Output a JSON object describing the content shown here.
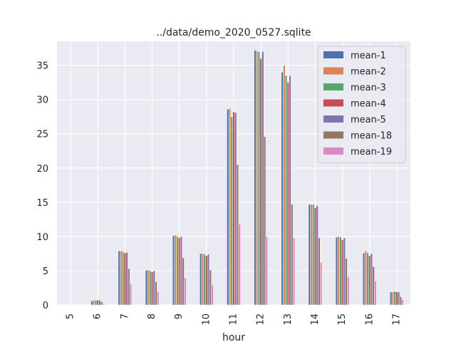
{
  "chart_data": {
    "type": "bar",
    "title": "../data/demo_2020_0527.sqlite",
    "xlabel": "hour",
    "ylabel": "",
    "ylim": [
      0,
      38.5
    ],
    "yticks": [
      0,
      5,
      10,
      15,
      20,
      25,
      30,
      35
    ],
    "grid": true,
    "legend_position": "top-right",
    "categories": [
      "5",
      "6",
      "7",
      "8",
      "9",
      "10",
      "11",
      "12",
      "13",
      "14",
      "15",
      "16",
      "17"
    ],
    "series": [
      {
        "name": "mean-1",
        "color": "#4c72b0",
        "values": [
          0,
          0.6,
          7.9,
          5.1,
          10.1,
          7.5,
          28.6,
          37.2,
          34.0,
          14.7,
          9.9,
          7.6,
          1.9
        ]
      },
      {
        "name": "mean-2",
        "color": "#dd8452",
        "values": [
          0,
          0.7,
          7.9,
          5.1,
          10.2,
          7.5,
          28.7,
          37.1,
          35.0,
          14.7,
          10.0,
          7.9,
          1.9
        ]
      },
      {
        "name": "mean-3",
        "color": "#55a868",
        "values": [
          0,
          0.7,
          7.8,
          5.0,
          10.0,
          7.4,
          27.5,
          37.0,
          33.5,
          14.7,
          9.9,
          7.6,
          2.0
        ]
      },
      {
        "name": "mean-4",
        "color": "#c44e52",
        "values": [
          0,
          0.7,
          7.6,
          4.8,
          9.8,
          7.2,
          28.2,
          36.0,
          32.5,
          14.2,
          9.5,
          7.2,
          1.9
        ]
      },
      {
        "name": "mean-5",
        "color": "#8172b3",
        "values": [
          0,
          0.7,
          7.7,
          5.0,
          10.0,
          7.4,
          28.1,
          37.0,
          33.5,
          14.5,
          9.8,
          7.5,
          1.9
        ]
      },
      {
        "name": "mean-18",
        "color": "#937860",
        "values": [
          0,
          0.5,
          5.3,
          3.4,
          6.9,
          5.1,
          20.5,
          24.6,
          14.7,
          9.8,
          6.8,
          5.6,
          1.2
        ]
      },
      {
        "name": "mean-19",
        "color": "#da8bc3",
        "values": [
          0,
          0.2,
          3.1,
          2.0,
          4.0,
          2.9,
          11.8,
          10.0,
          9.8,
          6.2,
          4.1,
          3.5,
          0.8
        ]
      }
    ]
  }
}
